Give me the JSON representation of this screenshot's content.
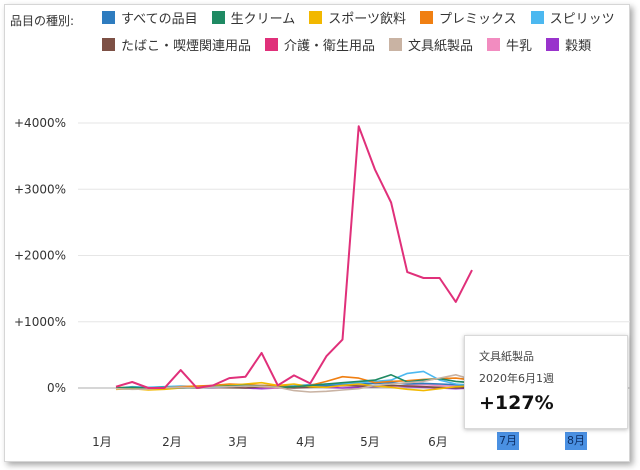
{
  "legend_title": "品目の種別:",
  "legend": [
    {
      "name": "すべての品目",
      "color": "#2e7cbf"
    },
    {
      "name": "生クリーム",
      "color": "#1f8a63"
    },
    {
      "name": "スポーツ飲料",
      "color": "#f2b800"
    },
    {
      "name": "プレミックス",
      "color": "#f07f12"
    },
    {
      "name": "スピリッツ",
      "color": "#4cb8f0"
    },
    {
      "name": "たばこ・喫煙関連用品",
      "color": "#7d5045"
    },
    {
      "name": "介護・衛生用品",
      "color": "#e0307a"
    },
    {
      "name": "文具紙製品",
      "color": "#c9b3a3"
    },
    {
      "name": "牛乳",
      "color": "#f28cc0"
    },
    {
      "name": "穀類",
      "color": "#9933cc"
    }
  ],
  "tooltip": {
    "series": "文具紙製品",
    "date": "2020年6月1週",
    "value": "+127%"
  },
  "month_buttons": [
    "7月",
    "8月"
  ],
  "chart_data": {
    "type": "line",
    "x_unit": "week (2020, Jan 1 – Jun 2)",
    "xticks": [
      "1月",
      "2月",
      "3月",
      "4月",
      "5月",
      "6月"
    ],
    "ytick_labels": [
      "0%",
      "+1000%",
      "+2000%",
      "+3000%",
      "+4000%"
    ],
    "ylim": [
      -200,
      4500
    ],
    "grid": "y",
    "series": [
      {
        "name": "介護・衛生用品",
        "color": "#e0307a",
        "values": [
          20,
          90,
          0,
          0,
          270,
          0,
          40,
          150,
          170,
          530,
          40,
          190,
          70,
          480,
          730,
          3950,
          3300,
          2800,
          1750,
          1660,
          1660,
          1300,
          1780
        ]
      },
      {
        "name": "文具紙製品",
        "color": "#c9b3a3",
        "values": [
          -10,
          -20,
          -15,
          5,
          10,
          0,
          15,
          20,
          30,
          25,
          10,
          -40,
          -60,
          -50,
          -30,
          -10,
          40,
          60,
          80,
          100,
          150,
          200,
          127
        ]
      },
      {
        "name": "生クリーム",
        "color": "#1f8a63",
        "values": [
          0,
          10,
          0,
          10,
          5,
          0,
          20,
          30,
          40,
          30,
          10,
          20,
          40,
          60,
          80,
          100,
          120,
          200,
          90,
          120,
          140,
          100,
          80
        ]
      },
      {
        "name": "スポーツ飲料",
        "color": "#f2b800",
        "values": [
          -20,
          -10,
          -30,
          -20,
          0,
          10,
          30,
          40,
          60,
          80,
          40,
          60,
          20,
          10,
          40,
          60,
          30,
          10,
          -20,
          -40,
          -10,
          20,
          30
        ]
      },
      {
        "name": "プレミックス",
        "color": "#f07f12",
        "values": [
          10,
          0,
          -10,
          0,
          20,
          30,
          40,
          60,
          50,
          40,
          30,
          20,
          40,
          100,
          170,
          150,
          80,
          100,
          110,
          130,
          140,
          150,
          120
        ]
      },
      {
        "name": "スピリッツ",
        "color": "#4cb8f0",
        "values": [
          0,
          20,
          10,
          20,
          30,
          20,
          10,
          20,
          40,
          30,
          20,
          40,
          50,
          60,
          70,
          80,
          100,
          120,
          220,
          250,
          120,
          60,
          40
        ]
      },
      {
        "name": "すべての品目",
        "color": "#2e7cbf",
        "values": [
          0,
          5,
          5,
          10,
          5,
          0,
          10,
          20,
          30,
          40,
          30,
          20,
          30,
          40,
          50,
          60,
          70,
          80,
          60,
          70,
          60,
          50,
          40
        ]
      },
      {
        "name": "たばこ・喫煙関連用品",
        "color": "#7d5045",
        "values": [
          0,
          0,
          -10,
          0,
          10,
          0,
          10,
          5,
          0,
          20,
          10,
          0,
          10,
          20,
          40,
          30,
          20,
          40,
          30,
          20,
          10,
          0,
          10
        ]
      },
      {
        "name": "牛乳",
        "color": "#f28cc0",
        "values": [
          0,
          10,
          0,
          10,
          20,
          10,
          0,
          10,
          20,
          10,
          0,
          20,
          30,
          20,
          30,
          40,
          30,
          20,
          40,
          50,
          40,
          30,
          20
        ]
      },
      {
        "name": "穀類",
        "color": "#9933cc",
        "values": [
          0,
          -10,
          0,
          10,
          0,
          10,
          20,
          10,
          0,
          -10,
          0,
          10,
          20,
          10,
          0,
          10,
          20,
          30,
          20,
          10,
          0,
          -10,
          0
        ]
      }
    ]
  }
}
